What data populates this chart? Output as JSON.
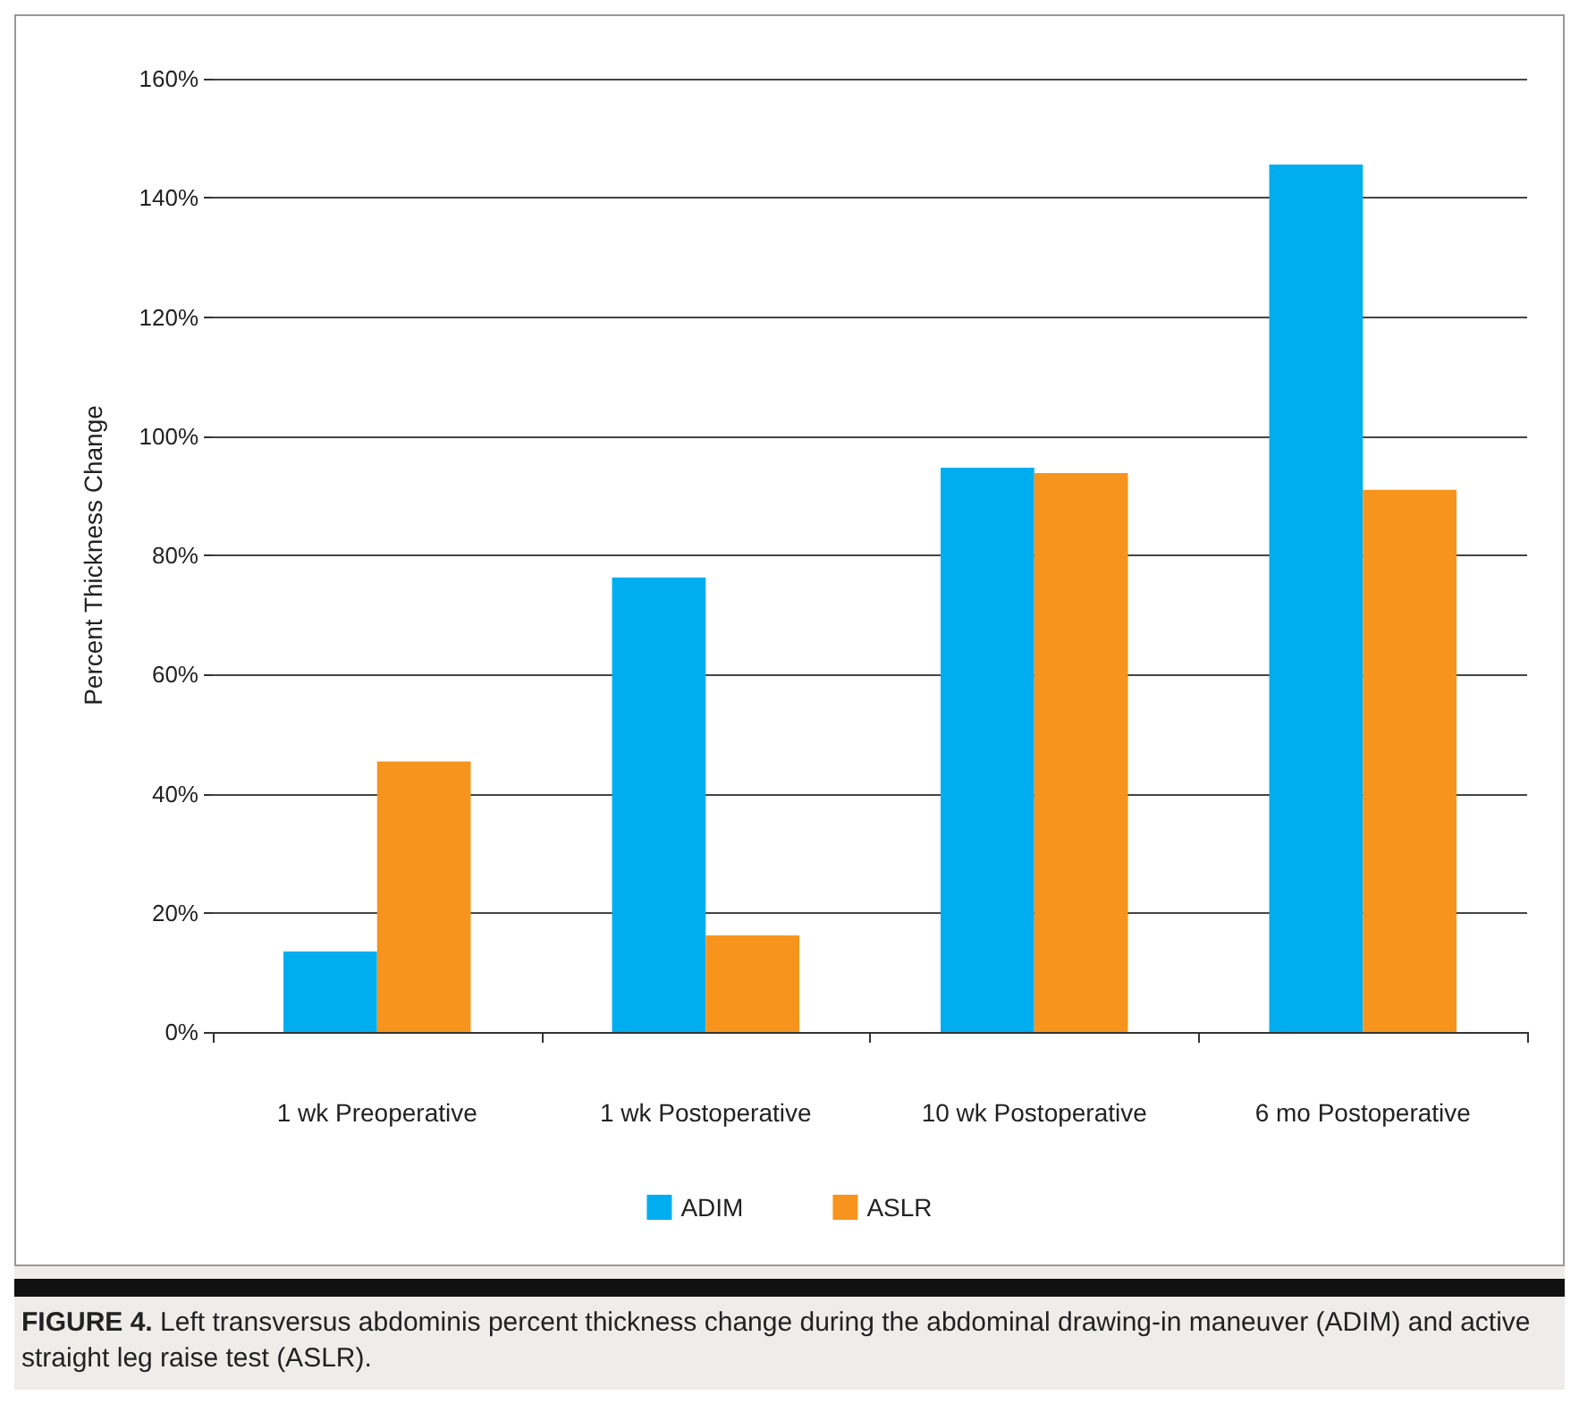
{
  "chart_data": {
    "type": "bar",
    "ylabel": "Percent Thickness Change",
    "categories": [
      "1 wk Preoperative",
      "1 wk Postoperative",
      "10 wk Postoperative",
      "6 mo Postoperative"
    ],
    "series": [
      {
        "name": "ADIM",
        "color": "#00aeef",
        "values": [
          13.5,
          76.3,
          94.7,
          145.6
        ]
      },
      {
        "name": "ASLR",
        "color": "#f7941d",
        "values": [
          45.4,
          16.2,
          93.8,
          91.0
        ]
      }
    ],
    "ylim": [
      0,
      160
    ],
    "yticks": [
      {
        "value": 0,
        "label": "0%"
      },
      {
        "value": 20,
        "label": "20%"
      },
      {
        "value": 40,
        "label": "40%"
      },
      {
        "value": 60,
        "label": "60%"
      },
      {
        "value": 80,
        "label": "80%"
      },
      {
        "value": 100,
        "label": "100%"
      },
      {
        "value": 120,
        "label": "120%"
      },
      {
        "value": 140,
        "label": "140%"
      },
      {
        "value": 160,
        "label": "160%"
      }
    ],
    "grid": "y",
    "legend": "bottom",
    "annotations": [
      "FIGURE 4.",
      "Left transversus abdominis percent thickness change during the abdominal drawing-in maneuver (ADIM) and active straight leg raise test (ASLR)."
    ]
  }
}
